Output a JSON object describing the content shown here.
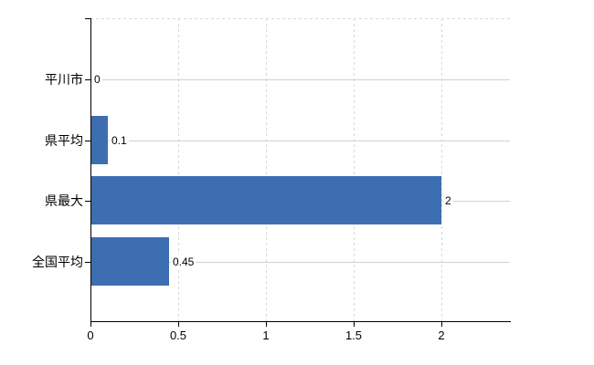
{
  "chart_data": {
    "type": "bar",
    "orientation": "horizontal",
    "title": "",
    "xlabel": "",
    "ylabel": "",
    "categories": [
      "平川市",
      "県平均",
      "県最大",
      "全国平均"
    ],
    "values": [
      0,
      0.1,
      2,
      0.45
    ],
    "value_labels": [
      "0",
      "0.1",
      "2",
      "0.45"
    ],
    "x_ticks": [
      0,
      0.5,
      1,
      1.5,
      2
    ],
    "x_tick_labels": [
      "0",
      "0.5",
      "1",
      "1.5",
      "2"
    ],
    "xlim": [
      0,
      2.39
    ],
    "grid": true,
    "legend": false,
    "colors": {
      "bar": "#3d6eb1",
      "h_grid": "#ccd4ca",
      "v_grid": "#d8d8d8",
      "top_border": "#d8d8d8",
      "axis": "#000000",
      "text": "#000000"
    }
  }
}
